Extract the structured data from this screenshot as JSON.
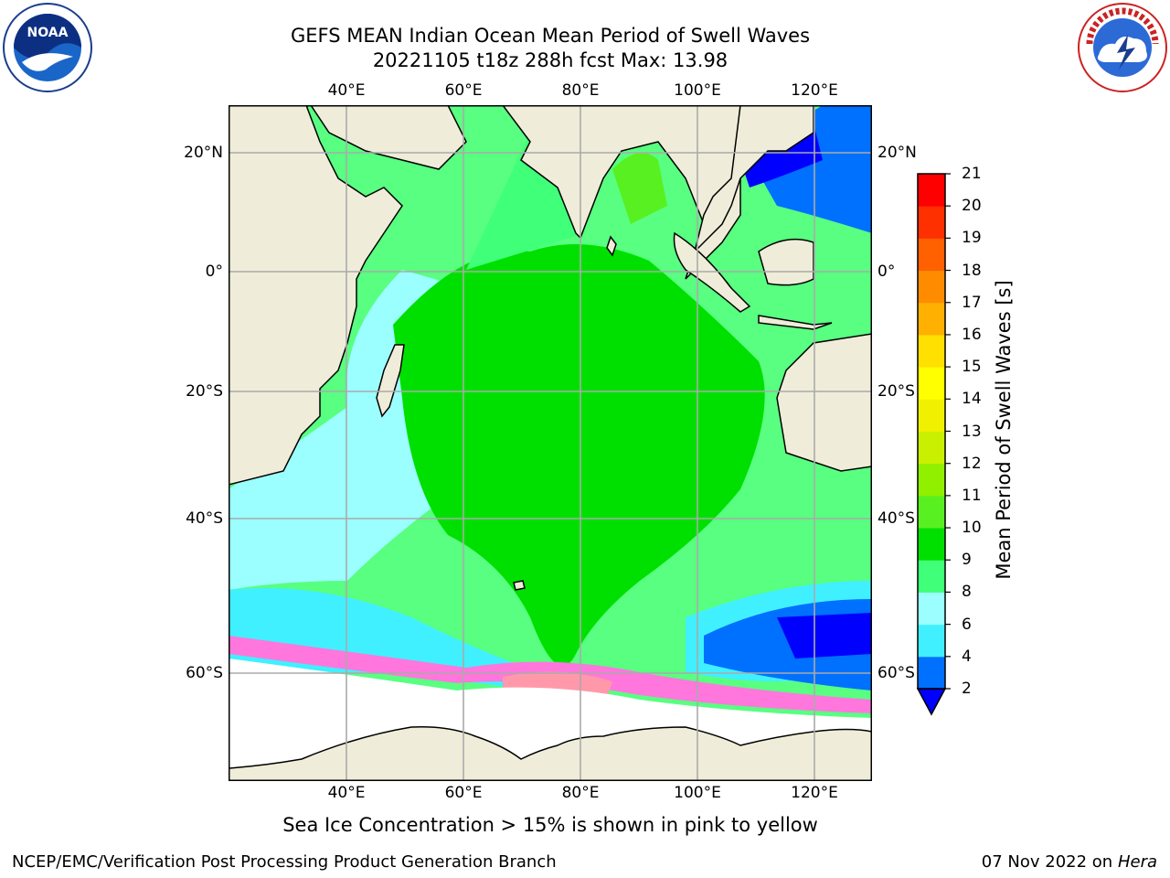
{
  "title_line1": "GEFS MEAN Indian Ocean Mean Period of Swell Waves",
  "title_line2": "20221105 t18z 288h fcst   Max: 13.98",
  "logos": {
    "left": "NOAA",
    "right": "NATIONAL WEATHER SERVICE"
  },
  "map": {
    "lon_labels": [
      "40°E",
      "60°E",
      "80°E",
      "100°E",
      "120°E"
    ],
    "lat_labels": [
      "20°N",
      "0°",
      "20°S",
      "40°S",
      "60°S"
    ],
    "colors": {
      "land": "#efedd9",
      "ice_white": "#ffffff",
      "grid": "#aaaaaa"
    }
  },
  "colorbar": {
    "label": "Mean Period of Swell Waves [s]",
    "ticks": [
      "2",
      "4",
      "6",
      "8",
      "9",
      "10",
      "11",
      "12",
      "13",
      "14",
      "15",
      "16",
      "17",
      "18",
      "19",
      "20",
      "21"
    ],
    "colors": [
      "#0070ff",
      "#00d0ff",
      "#40f0ff",
      "#9cffff",
      "#40ff78",
      "#00e000",
      "#58f020",
      "#90f000",
      "#c8f000",
      "#f0f000",
      "#ffff00",
      "#ffe000",
      "#ffb000",
      "#ff8c00",
      "#ff6000",
      "#ff3000",
      "#ff0000"
    ],
    "under_color": "#0000ff"
  },
  "caption": "Sea Ice Concentration > 15% is shown in pink to yellow",
  "footer_left": "NCEP/EMC/Verification Post Processing Product Generation Branch",
  "footer_right_date": "07 Nov 2022 on",
  "footer_right_host": "Hera"
}
